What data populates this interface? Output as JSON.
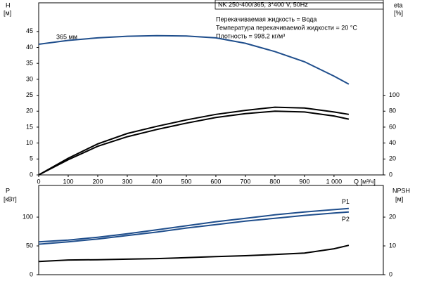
{
  "chart_data": [
    {
      "type": "line",
      "title": "NK 250-400/365, 3*400 V, 50Hz",
      "annotations": [
        "Перекачиваемая жидкость = Вода",
        "Температура перекачиваемой жидкости = 20 °C",
        "Плотность = 998.2 кг/м³"
      ],
      "y_label": "H",
      "y_unit": "[м]",
      "y2_label": "eta",
      "y2_unit": "[%]",
      "x_label": "Q [м³/ч]",
      "x": [
        0,
        100,
        200,
        300,
        400,
        500,
        600,
        700,
        800,
        900,
        1000,
        1050
      ],
      "series": [
        {
          "label": "365 мм",
          "color": "#1f4e8c",
          "values": [
            41,
            42.2,
            43,
            43.5,
            43.7,
            43.6,
            43,
            41.3,
            38.7,
            35.5,
            31,
            28.5
          ]
        },
        {
          "color": "#000000",
          "axis": "y2",
          "values": [
            0,
            21,
            39,
            52,
            61,
            69,
            76,
            81,
            85,
            84,
            79,
            76
          ]
        },
        {
          "color": "#000000",
          "axis": "y2",
          "values": [
            0,
            19,
            36,
            48,
            57,
            65,
            72,
            77,
            80,
            79,
            74,
            70
          ]
        }
      ],
      "xlim": [
        0,
        1167
      ],
      "xticks": [
        0,
        100,
        200,
        300,
        400,
        500,
        600,
        700,
        800,
        900,
        {
          "value": 1000,
          "label": "1 000"
        }
      ],
      "ylim": [
        0,
        54
      ],
      "yticks": [
        0,
        5,
        10,
        15,
        20,
        25,
        30,
        35,
        40,
        45
      ],
      "y2lim": [
        0,
        216
      ],
      "y2ticks": [
        0,
        20,
        40,
        60,
        80,
        100
      ]
    },
    {
      "type": "line",
      "y_label": "P",
      "y_unit": "[кВт]",
      "y2_label": "NPSH",
      "y2_unit": "[м]",
      "x": [
        0,
        100,
        200,
        300,
        400,
        500,
        600,
        700,
        800,
        900,
        1000,
        1050
      ],
      "series": [
        {
          "name": "P1",
          "color": "#1f4e8c",
          "values": [
            57,
            60,
            65,
            71,
            78,
            85,
            92,
            98,
            104,
            109,
            113,
            115
          ]
        },
        {
          "name": "P2",
          "color": "#1f4e8c",
          "values": [
            53,
            57,
            62,
            68,
            74,
            81,
            87,
            93,
            98,
            103,
            107,
            109
          ]
        },
        {
          "color": "#000000",
          "axis": "y2",
          "values": [
            4.6,
            5.1,
            5.2,
            5.4,
            5.6,
            5.9,
            6.3,
            6.6,
            7,
            7.5,
            9,
            10.2
          ]
        }
      ],
      "xlim": [
        0,
        1167
      ],
      "ylim": [
        0,
        155
      ],
      "yticks": [
        0,
        50,
        100
      ],
      "y2lim": [
        0,
        31
      ],
      "y2ticks": [
        0,
        10,
        20
      ]
    }
  ]
}
